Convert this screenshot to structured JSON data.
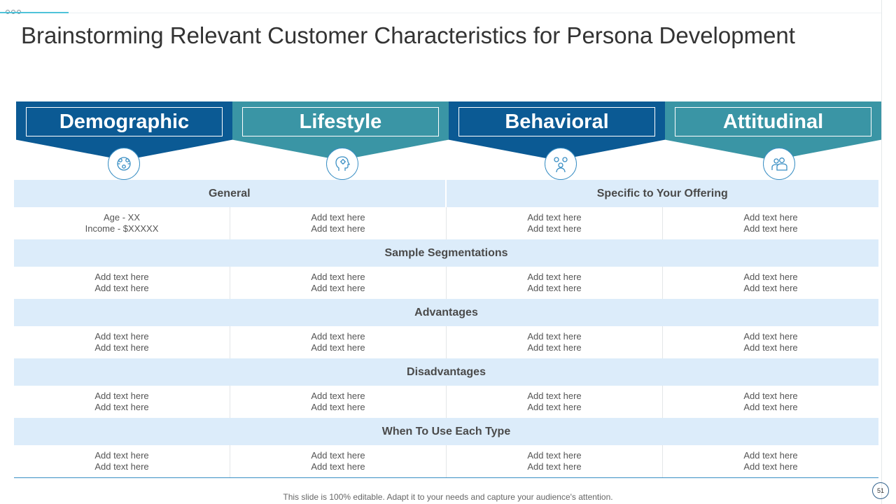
{
  "title": "Brainstorming Relevant Customer Characteristics for Persona Development",
  "headers": [
    {
      "label": "Demographic",
      "icon": "people-network-icon"
    },
    {
      "label": "Lifestyle",
      "icon": "head-gear-icon"
    },
    {
      "label": "Behavioral",
      "icon": "person-gears-icon"
    },
    {
      "label": "Attitudinal",
      "icon": "two-people-icon"
    }
  ],
  "sections": {
    "general": "General",
    "specific": "Specific to Your Offering",
    "sample": "Sample Segmentations",
    "advantages": "Advantages",
    "disadvantages": "Disadvantages",
    "when": "When To Use Each Type"
  },
  "rows": {
    "general": [
      [
        "Age - XX",
        "Income - $XXXXX"
      ],
      [
        "Add text here",
        "Add text here"
      ],
      [
        "Add text here",
        "Add text here"
      ],
      [
        "Add text here",
        "Add text here"
      ]
    ],
    "sample": [
      [
        "Add text here",
        "Add text here"
      ],
      [
        "Add text here",
        "Add text here"
      ],
      [
        "Add text here",
        "Add text here"
      ],
      [
        "Add text here",
        "Add text here"
      ]
    ],
    "advantages": [
      [
        "Add text here",
        "Add text here"
      ],
      [
        "Add text here",
        "Add text here"
      ],
      [
        "Add text here",
        "Add text here"
      ],
      [
        "Add text here",
        "Add text here"
      ]
    ],
    "disadvantages": [
      [
        "Add text here",
        "Add text here"
      ],
      [
        "Add text here",
        "Add text here"
      ],
      [
        "Add text here",
        "Add text here"
      ],
      [
        "Add text here",
        "Add text here"
      ]
    ],
    "when": [
      [
        "Add text here",
        "Add text here"
      ],
      [
        "Add text here",
        "Add text here"
      ],
      [
        "Add text here",
        "Add text here"
      ],
      [
        "Add text here",
        "Add text here"
      ]
    ]
  },
  "footer": "This slide is 100% editable. Adapt it to your needs and capture your audience's attention.",
  "page_number": "51",
  "colors": {
    "dark_blue": "#0b5a94",
    "teal": "#3a95a5",
    "section_bg": "#dcecfa"
  }
}
